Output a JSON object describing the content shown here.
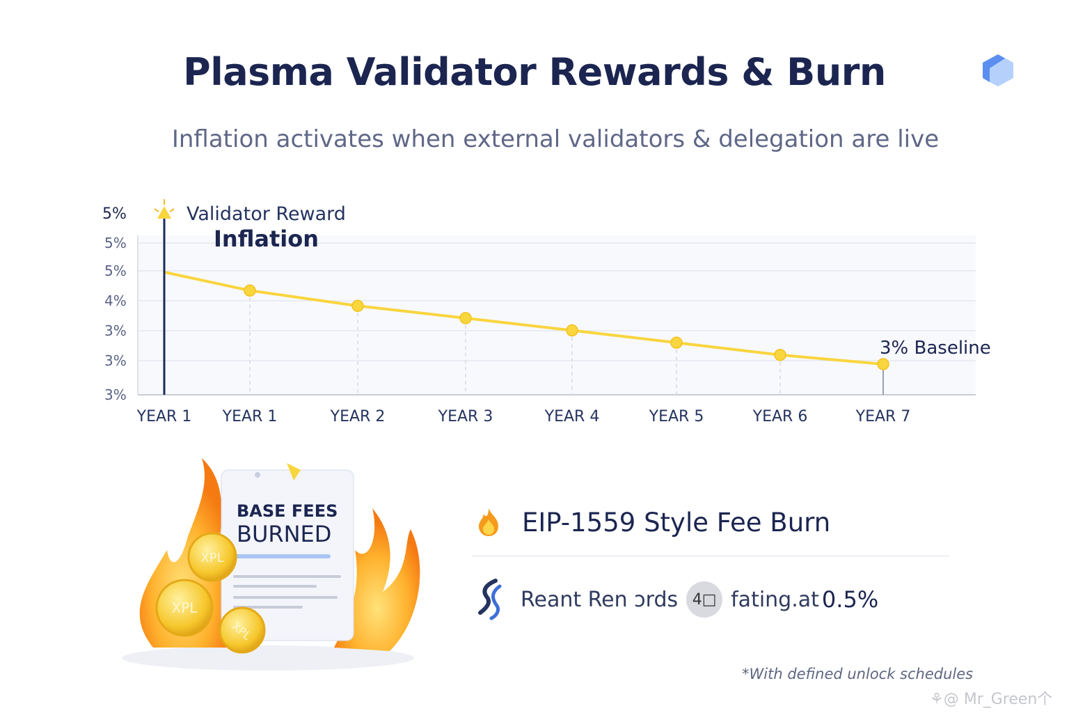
{
  "header": {
    "title": "Plasma Validator Rewards & Burn",
    "subtitle": "Inflation activates when external validators & delegation are live"
  },
  "chart_data": {
    "type": "line",
    "title": "",
    "xlabel": "",
    "ylabel": "",
    "y_tick_labels": [
      "5%",
      "5%",
      "5%",
      "4%",
      "3%",
      "3%",
      "3%"
    ],
    "categories": [
      "YEAR 1",
      "YEAR 1",
      "YEAR 2",
      "YEAR 3",
      "YEAR 4",
      "YEAR 5",
      "YEAR 6",
      "YEAR 7"
    ],
    "series": [
      {
        "values": [
          4.8,
          4.5,
          4.25,
          4.05,
          3.85,
          3.65,
          3.45,
          3.3
        ]
      }
    ],
    "ylim": [
      2.8,
      5.4
    ],
    "grid": true,
    "annotations": {
      "marker_line1": "Validator Reward",
      "marker_line2": "Inflation",
      "end_label": "3% Baseline"
    },
    "line_color": "#f9d53e",
    "marker_color": "#1b2a5e"
  },
  "fee_burn": {
    "icon": "flame-icon",
    "title": "EIP-1559 Style Fee Burn",
    "receipt_line1": "BASE FEES",
    "receipt_line2": "BURNED",
    "coin_label": "XPL"
  },
  "rewards": {
    "icon": "plasma-logo-icon",
    "text": "Reant Ren ɔrds",
    "badge": "4□",
    "text2": "fating.at",
    "rate": "0.5%"
  },
  "footnote": "*With defined unlock schedules",
  "watermark": "⚘@ Mr_Green个"
}
